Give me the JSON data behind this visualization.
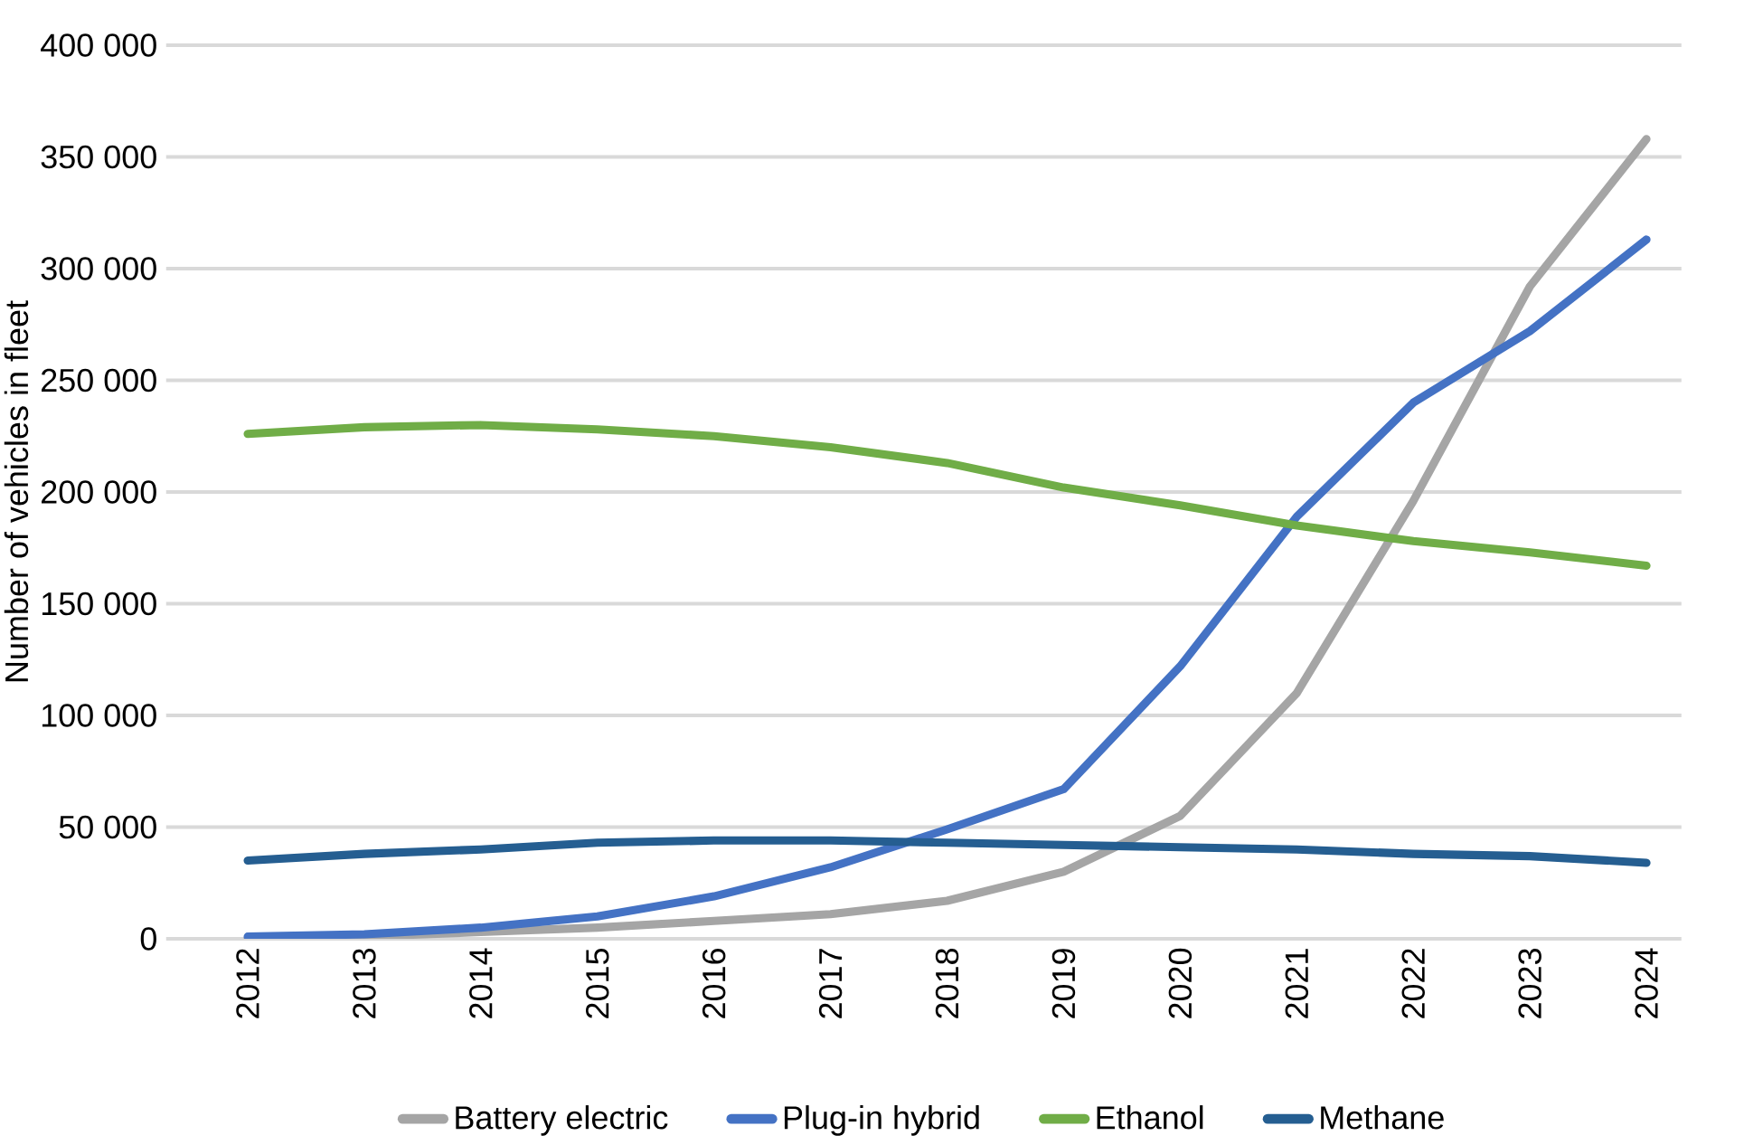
{
  "chart_data": {
    "type": "line",
    "ylabel": "Number of vehicles in fleet",
    "categories": [
      "2012",
      "2013",
      "2014",
      "2015",
      "2016",
      "2017",
      "2018",
      "2019",
      "2020",
      "2021",
      "2022",
      "2023",
      "2024"
    ],
    "series": [
      {
        "name": "Battery electric",
        "color": "#a5a5a5",
        "values": [
          0,
          1000,
          3000,
          5000,
          8000,
          11000,
          17000,
          30000,
          55000,
          110000,
          196000,
          292000,
          358000
        ]
      },
      {
        "name": "Plug-in hybrid",
        "color": "#4472c4",
        "values": [
          1000,
          2000,
          5000,
          10000,
          19000,
          32000,
          49000,
          67000,
          122000,
          189000,
          240000,
          272000,
          313000
        ]
      },
      {
        "name": "Ethanol",
        "color": "#70ad47",
        "values": [
          226000,
          229000,
          230000,
          228000,
          225000,
          220000,
          213000,
          202000,
          194000,
          185000,
          178000,
          173000,
          167000
        ]
      },
      {
        "name": "Methane",
        "color": "#255e91",
        "values": [
          35000,
          38000,
          40000,
          43000,
          44000,
          44000,
          43000,
          42000,
          41000,
          40000,
          38000,
          37000,
          34000
        ]
      }
    ],
    "ylim": [
      0,
      400000
    ],
    "yticks": [
      {
        "value": 0,
        "label": "0"
      },
      {
        "value": 50000,
        "label": "50 000"
      },
      {
        "value": 100000,
        "label": "100 000"
      },
      {
        "value": 150000,
        "label": "150 000"
      },
      {
        "value": 200000,
        "label": "200 000"
      },
      {
        "value": 250000,
        "label": "250 000"
      },
      {
        "value": 300000,
        "label": "300 000"
      },
      {
        "value": 350000,
        "label": "350 000"
      },
      {
        "value": 400000,
        "label": "400 000"
      }
    ],
    "grid": "y",
    "legend": "bottom",
    "marker": "none",
    "line_style": "solid"
  }
}
